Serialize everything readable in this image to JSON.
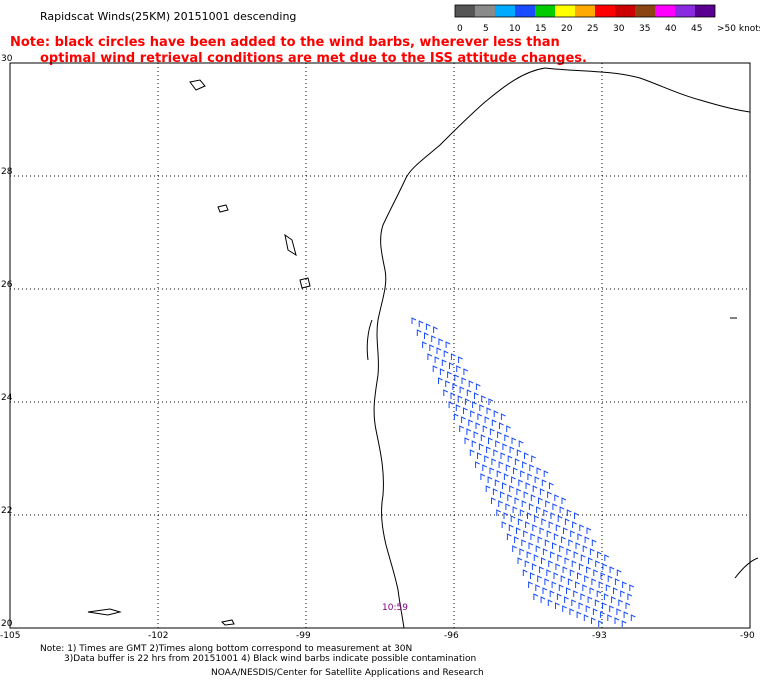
{
  "header": {
    "title": "Rapidscat Winds(25KM) 20151001 descending",
    "note_line1": "Note: black circles have been added to the wind barbs, wherever less than",
    "note_line2": "optimal wind retrieval conditions are met due to the ISS attitude changes."
  },
  "legend": {
    "units": "knots",
    "labels": [
      "0",
      "5",
      "10",
      "15",
      "20",
      "25",
      "30",
      "35",
      "40",
      "45",
      ">50 knots"
    ],
    "colors": [
      "#555555",
      "#8a8a8a",
      "#00aaff",
      "#1a4cff",
      "#00cc00",
      "#ffff00",
      "#ffaa00",
      "#ff0000",
      "#cc0000",
      "#8b4513",
      "#ff00ff",
      "#8a2be2",
      "#5a0090"
    ]
  },
  "axes": {
    "lat_labels": [
      "30",
      "28",
      "26",
      "24",
      "22",
      "20"
    ],
    "lon_labels": [
      "-105",
      "-102",
      "-99",
      "-96",
      "-93",
      "-90"
    ],
    "lat_values": [
      30,
      28,
      26,
      24,
      22,
      20
    ],
    "lon_values": [
      -105,
      -102,
      -99,
      -96,
      -93,
      -90
    ]
  },
  "map_extent": {
    "lon_min": -105,
    "lon_max": -90,
    "lat_min": 20,
    "lat_max": 30
  },
  "time_label": "10:59",
  "footer": {
    "line1": "Note: 1) Times are GMT 2)Times along bottom correspond to measurement at 30N",
    "line2": "3)Data buffer is 22 hrs from 20151001 4) Black wind barbs indicate possible contamination",
    "line3": "NOAA/NESDIS/Center for Satellite Applications and Research"
  }
}
